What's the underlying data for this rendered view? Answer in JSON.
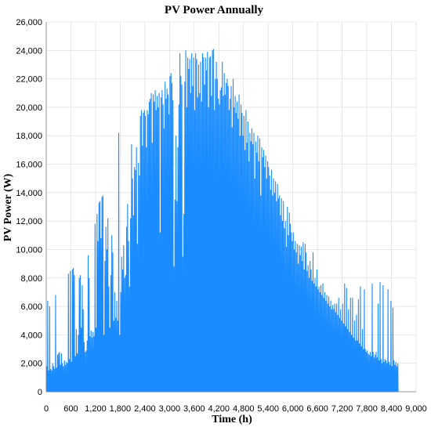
{
  "chart_data": {
    "type": "line",
    "title": "PV Power Annually",
    "xlabel": "Time (h)",
    "ylabel": "PV Power (W)",
    "xlim": [
      0,
      9000
    ],
    "ylim": [
      0,
      26000
    ],
    "xticks": [
      "0",
      "600",
      "1,200",
      "1,800",
      "2,400",
      "3,000",
      "3,600",
      "4,200",
      "4,800",
      "5,400",
      "6,000",
      "6,600",
      "7,200",
      "7,800",
      "8,400",
      "9,000"
    ],
    "yticks": [
      "0",
      "2,000",
      "4,000",
      "6,000",
      "8,000",
      "10,000",
      "12,000",
      "14,000",
      "16,000",
      "18,000",
      "20,000",
      "22,000",
      "24,000",
      "26,000"
    ],
    "grid": true,
    "series": [
      {
        "color": "#1a8cff",
        "x_start": 0,
        "x_step": 24,
        "daily_peaks": [
          1800,
          6400,
          1500,
          6000,
          1600,
          1500,
          2000,
          1800,
          1600,
          6800,
          1700,
          2600,
          2700,
          2800,
          1900,
          2700,
          2000,
          1800,
          2200,
          1900,
          2100,
          2000,
          8300,
          2300,
          8500,
          2100,
          8600,
          8700,
          8200,
          2500,
          4400,
          2700,
          4000,
          8000,
          8200,
          4500,
          7500,
          5800,
          3500,
          2800,
          2900,
          3600,
          9600,
          8000,
          3900,
          4300,
          3800,
          4200,
          3900,
          11800,
          4500,
          12500,
          10600,
          13300,
          13400,
          10800,
          13700,
          13800,
          4000,
          9200,
          11600,
          10000,
          12200,
          7400,
          4500,
          8200,
          11000,
          9800,
          5000,
          7000,
          5200,
          6400,
          5000,
          18200,
          4000,
          7000,
          9500,
          8600,
          10300,
          8000,
          8200,
          11600,
          13200,
          10600,
          7400,
          12200,
          17400,
          15000,
          12400,
          15800,
          15600,
          17200,
          10400,
          16100,
          15200,
          19400,
          19800,
          17300,
          19600,
          19800,
          19400,
          17200,
          19800,
          19500,
          20400,
          20600,
          21000,
          17500,
          20900,
          20400,
          21200,
          19800,
          20800,
          20000,
          21000,
          11200,
          20700,
          21200,
          20200,
          18500,
          21800,
          20600,
          21300,
          20900,
          19500,
          22200,
          22400,
          21700,
          20500,
          8800,
          13500,
          18000,
          13400,
          17200,
          20200,
          23800,
          22200,
          21600,
          9500,
          12500,
          21800,
          24000,
          20000,
          23500,
          22700,
          23400,
          21000,
          23800,
          21500,
          23500,
          19800,
          23800,
          23400,
          20700,
          23000,
          21000,
          23200,
          20400,
          23800,
          23500,
          21600,
          23500,
          22600,
          23900,
          20000,
          23500,
          23600,
          20800,
          24000,
          24100,
          19800,
          22000,
          23200,
          22000,
          20600,
          20200,
          21200,
          21400,
          23200,
          20800,
          22400,
          20900,
          21700,
          22000,
          21500,
          19800,
          20600,
          21500,
          18600,
          22000,
          20000,
          20800,
          19600,
          20400,
          19200,
          20900,
          18000,
          20200,
          19600,
          18000,
          19400,
          17000,
          19800,
          17500,
          19000,
          16200,
          18200,
          17600,
          18500,
          17400,
          18200,
          15000,
          17600,
          16800,
          18000,
          16200,
          17800,
          13800,
          17200,
          16500,
          17000,
          15800,
          16600,
          15000,
          16200,
          15800,
          15200,
          14200,
          15600,
          13800,
          15000,
          14000,
          14800,
          13400,
          14600,
          13600,
          13800,
          12400,
          13600,
          12000,
          13400,
          11500,
          12000,
          10200,
          13000,
          11000,
          12600,
          11800,
          11200,
          10600,
          11200,
          10000,
          10600,
          9800,
          10400,
          9000,
          10300,
          9600,
          10200,
          9200,
          10500,
          8600,
          10400,
          9800,
          8500,
          8900,
          8000,
          9200,
          8600,
          7800,
          9800,
          7600,
          8000,
          7400,
          8600,
          7200,
          7400,
          7000,
          7500,
          6800,
          7600,
          6600,
          7000,
          6400,
          6800,
          6200,
          6700,
          6000,
          6400,
          5800,
          6100,
          5800,
          6200,
          5600,
          6200,
          5400,
          6600,
          5200,
          5800,
          5000,
          6200,
          4800,
          7600,
          4600,
          7300,
          4400,
          5800,
          4200,
          6600,
          4000,
          6600,
          3800,
          5000,
          3600,
          5400,
          3600,
          6500,
          3400,
          7400,
          3200,
          4400,
          3000,
          7200,
          3000,
          2800,
          2900,
          2700,
          2600,
          2800,
          2500,
          7600,
          2800,
          2400,
          2600,
          2800,
          2400,
          6200,
          2200,
          7700,
          2300,
          2000,
          7500,
          2100,
          2300,
          2200,
          2000,
          7200,
          2100,
          1900,
          6400,
          1800,
          5900,
          2200,
          1900,
          2100,
          1800,
          2000
        ]
      }
    ]
  }
}
